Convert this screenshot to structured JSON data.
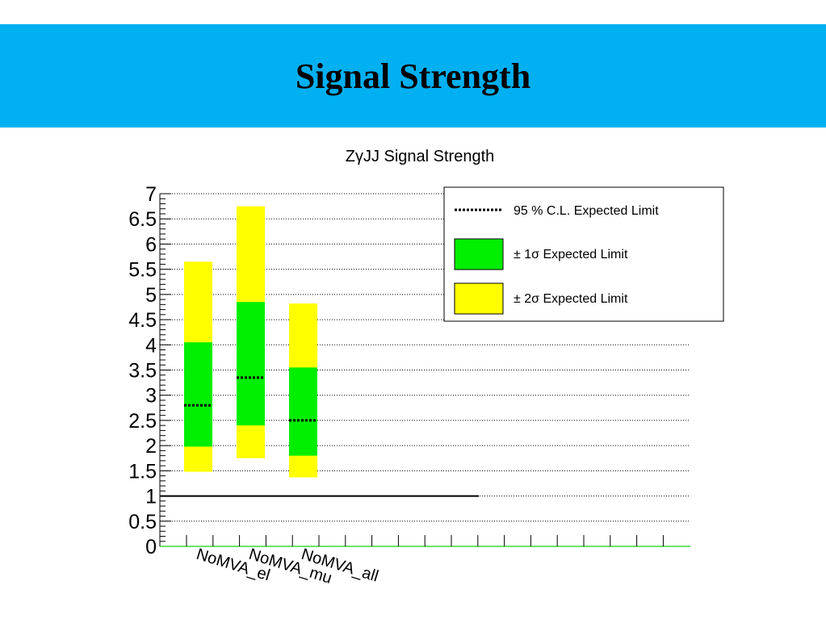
{
  "slide": {
    "title": "Signal Strength"
  },
  "colors": {
    "banner": "#00b0f0",
    "one_sigma": "#00ee00",
    "two_sigma": "#ffff00",
    "axis_x": "#33dd33"
  },
  "chart_data": {
    "type": "bar",
    "title": "ZγJJ Signal Strength",
    "xlabel": "",
    "ylabel": "",
    "ylim": [
      0,
      7
    ],
    "yticks": [
      "0",
      "0.5",
      "1",
      "1.5",
      "2",
      "2.5",
      "3",
      "3.5",
      "4",
      "4.5",
      "5",
      "5.5",
      "6",
      "6.5",
      "7"
    ],
    "grid": true,
    "reference_line": 1,
    "categories": [
      "NoMVA_el",
      "NoMVA_mu",
      "NoMVA_all"
    ],
    "expected_limit": [
      2.8,
      3.35,
      2.5
    ],
    "one_sigma_low": [
      1.98,
      2.4,
      1.8
    ],
    "one_sigma_high": [
      4.05,
      4.85,
      3.55
    ],
    "two_sigma_low": [
      1.48,
      1.75,
      1.37
    ],
    "two_sigma_high": [
      5.65,
      6.75,
      4.82
    ],
    "legend_position": "top-right",
    "legend": {
      "expected": "95 % C.L. Expected Limit",
      "one_sigma": "± 1σ Expected Limit",
      "two_sigma": "± 2σ Expected Limit"
    }
  }
}
